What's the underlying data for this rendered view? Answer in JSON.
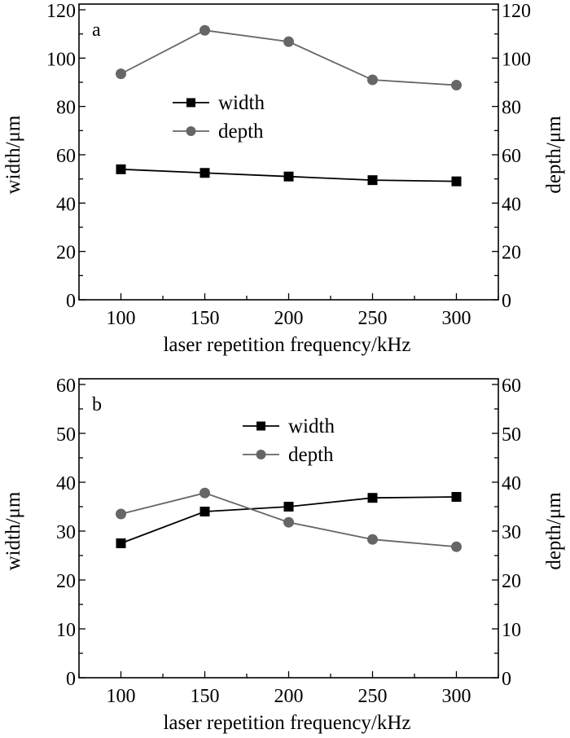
{
  "chart_data": [
    {
      "type": "line",
      "panel_label": "a",
      "xlabel": "laser repetition frequency/kHz",
      "ylabel": "width/μm",
      "ylabel_right": "depth/μm",
      "x": [
        100,
        150,
        200,
        250,
        300
      ],
      "xticks": [
        100,
        150,
        200,
        250,
        300
      ],
      "xlim": [
        75,
        325
      ],
      "ylim": [
        0,
        120
      ],
      "yticks": [
        0,
        20,
        40,
        60,
        80,
        100,
        120
      ],
      "grid": false,
      "legend_placement": "center-left",
      "series": [
        {
          "name": "width",
          "marker": "square",
          "color": "#000000",
          "values": [
            54,
            52.5,
            51,
            49.5,
            49
          ]
        },
        {
          "name": "depth",
          "marker": "circle",
          "color": "#666666",
          "values": [
            93.5,
            111.5,
            106.8,
            91,
            88.8
          ]
        }
      ]
    },
    {
      "type": "line",
      "panel_label": "b",
      "xlabel": "laser repetition frequency/kHz",
      "ylabel": "width/μm",
      "ylabel_right": "depth/μm",
      "x": [
        100,
        150,
        200,
        250,
        300
      ],
      "xticks": [
        100,
        150,
        200,
        250,
        300
      ],
      "xlim": [
        75,
        325
      ],
      "ylim": [
        0,
        60
      ],
      "yticks": [
        0,
        10,
        20,
        30,
        40,
        50,
        60
      ],
      "grid": false,
      "legend_placement": "top-center",
      "series": [
        {
          "name": "width",
          "marker": "square",
          "color": "#000000",
          "values": [
            27.5,
            34,
            35,
            36.8,
            37
          ]
        },
        {
          "name": "depth",
          "marker": "circle",
          "color": "#666666",
          "values": [
            33.5,
            37.8,
            31.8,
            28.3,
            26.8
          ]
        }
      ]
    }
  ]
}
